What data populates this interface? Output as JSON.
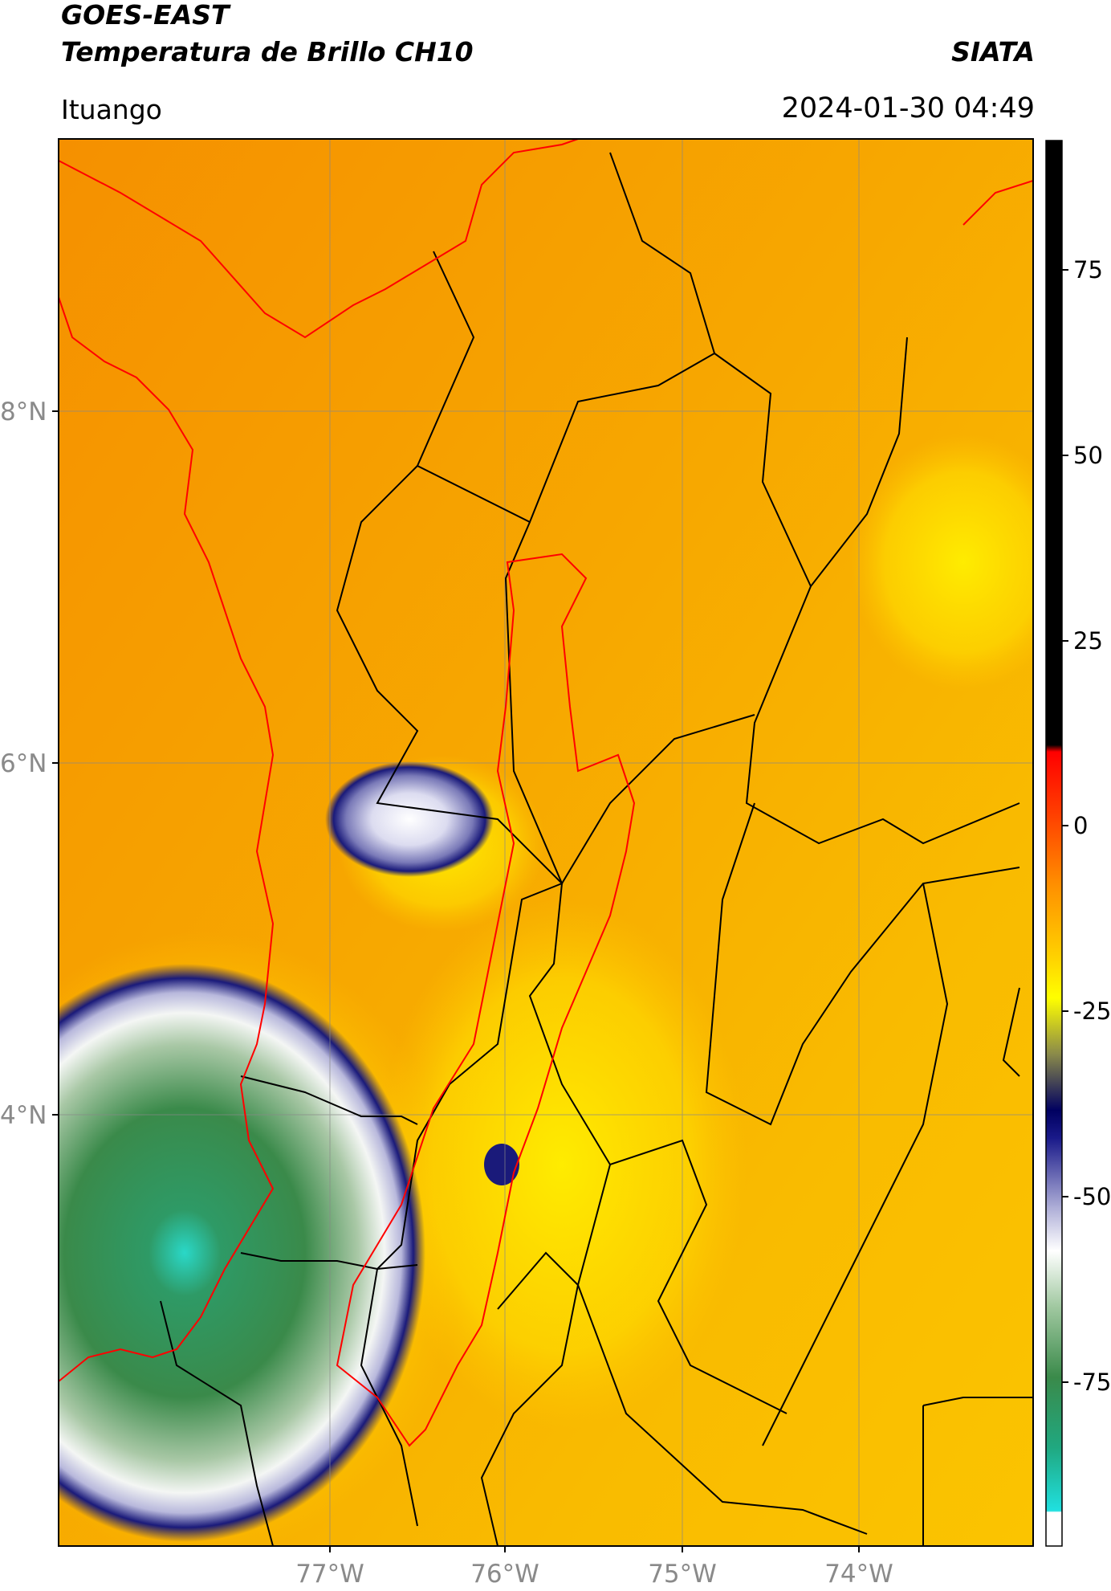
{
  "header": {
    "satellite": "GOES-EAST",
    "product": "Temperatura de Brillo CH10",
    "brand": "SIATA",
    "location": "Ituango",
    "datetime": "2024-01-30 04:49"
  },
  "map": {
    "lon_labels": [
      "77°W",
      "76°W",
      "75°W",
      "74°W"
    ],
    "lat_labels": [
      "8°N",
      "6°N",
      "4°N"
    ],
    "gridlines": true,
    "colors": {
      "background_orange": "#f5960a",
      "yellow": "#ffd400",
      "navy": "#1a1a7a",
      "white": "#f5f5fa",
      "green": "#3a8a4a",
      "cyan": "#2ad8c8",
      "border_black": "#000000",
      "border_red": "#ff0000"
    }
  },
  "colorbar": {
    "tick_labels": [
      "75",
      "50",
      "25",
      "0",
      "-25",
      "-50",
      "-75"
    ],
    "position": "right"
  }
}
